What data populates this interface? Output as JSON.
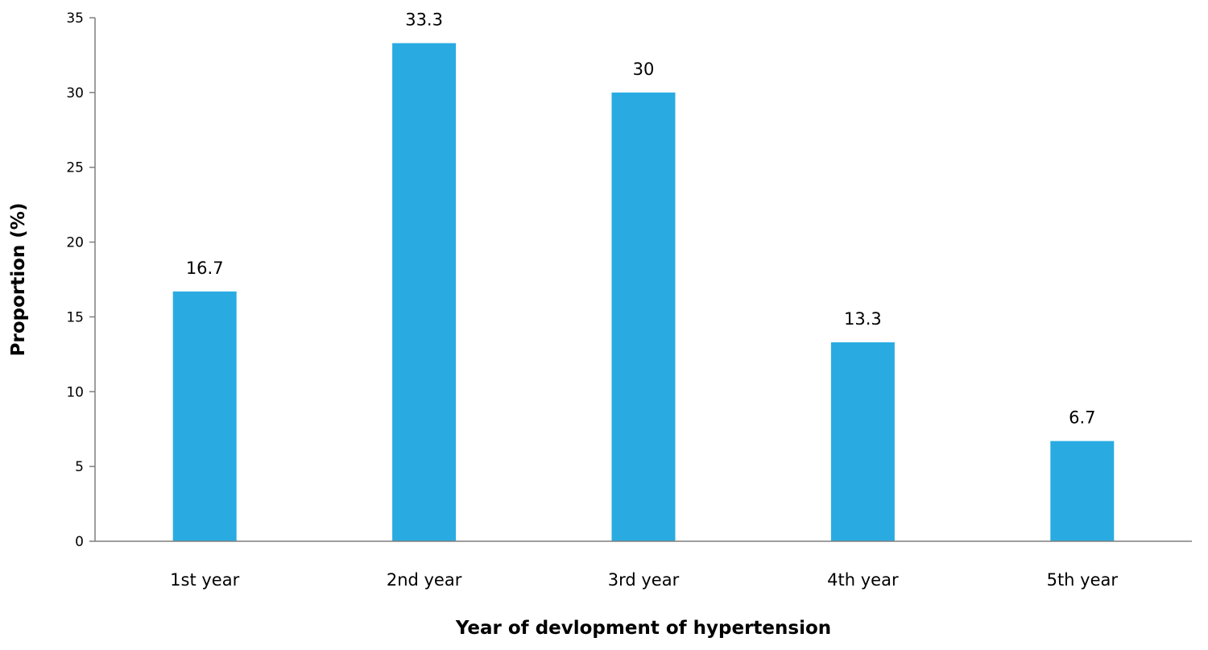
{
  "chart_data": {
    "type": "bar",
    "title": "",
    "xlabel": "Year of devlopment of hypertension",
    "ylabel": "Proportion (%)",
    "categories": [
      "1st year",
      "2nd year",
      "3rd year",
      "4th year",
      "5th year"
    ],
    "values": [
      16.7,
      33.3,
      30,
      13.3,
      6.7
    ],
    "data_labels": [
      "16.7",
      "33.3",
      "30",
      "13.3",
      "6.7"
    ],
    "ylim": [
      0,
      35
    ],
    "yticks": [
      0,
      5,
      10,
      15,
      20,
      25,
      30,
      35
    ],
    "grid": false,
    "legend": "none",
    "bar_color": "#29ABE2",
    "axis_color": "#7F7F7F"
  }
}
